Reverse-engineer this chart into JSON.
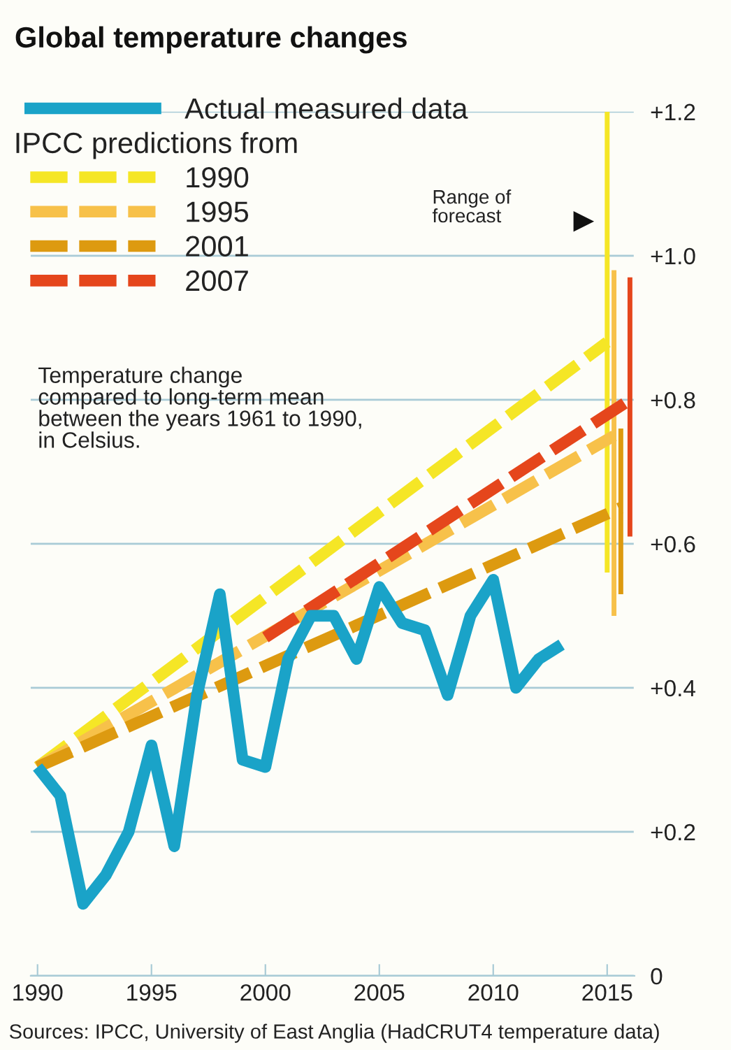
{
  "chart_data": {
    "type": "line",
    "title": "Global temperature changes",
    "legend_title": "IPCC predictions from",
    "xlim": [
      1989.7,
      2016.2
    ],
    "xticks": [
      1990,
      1995,
      2000,
      2005,
      2010,
      2015
    ],
    "ylim": [
      0,
      1.2
    ],
    "yticks": [
      {
        "value": 0,
        "label": "0"
      },
      {
        "value": 0.2,
        "label": "+0.2"
      },
      {
        "value": 0.4,
        "label": "+0.4"
      },
      {
        "value": 0.6,
        "label": "+0.6"
      },
      {
        "value": 0.8,
        "label": "+0.8"
      },
      {
        "value": 1.0,
        "label": "+1.0"
      },
      {
        "value": 1.2,
        "label": "+1.2"
      }
    ],
    "grid": "y",
    "legend": "top left",
    "marker": "none",
    "series": [
      {
        "name": "Actual measured data",
        "color": "#1aa3c8",
        "line_style": "solid",
        "x": [
          1990,
          1991,
          1992,
          1993,
          1994,
          1995,
          1996,
          1997,
          1998,
          1999,
          2000,
          2001,
          2002,
          2003,
          2004,
          2005,
          2006,
          2007,
          2008,
          2009,
          2010,
          2011,
          2012,
          2013
        ],
        "values": [
          0.29,
          0.25,
          0.1,
          0.14,
          0.2,
          0.32,
          0.18,
          0.39,
          0.53,
          0.3,
          0.29,
          0.44,
          0.5,
          0.5,
          0.44,
          0.54,
          0.49,
          0.48,
          0.39,
          0.5,
          0.55,
          0.4,
          0.44,
          0.46
        ]
      },
      {
        "name": "1990",
        "color": "#f5e626",
        "line_style": "dashed",
        "x": [
          1990,
          2015
        ],
        "values": [
          0.29,
          0.88
        ],
        "errors": [
          null,
          [
            0.56,
            1.2
          ]
        ]
      },
      {
        "name": "1995",
        "color": "#f7c14a",
        "line_style": "dashed",
        "x": [
          1990,
          2015.3
        ],
        "values": [
          0.29,
          0.75
        ],
        "errors": [
          null,
          [
            0.5,
            0.98
          ]
        ]
      },
      {
        "name": "2001",
        "color": "#dd9a10",
        "line_style": "dashed",
        "x": [
          1990,
          2015.6
        ],
        "values": [
          0.29,
          0.65
        ],
        "errors": [
          null,
          [
            0.53,
            0.76
          ]
        ]
      },
      {
        "name": "2007",
        "color": "#e5461c",
        "line_style": "dashed",
        "x": [
          2000,
          2016
        ],
        "values": [
          0.47,
          0.8
        ],
        "errors": [
          null,
          [
            0.61,
            0.97
          ]
        ]
      }
    ],
    "annotations": [
      "Temperature change\ncompared to long-term mean\nbetween the years 1961 to 1990,\nin Celsius.",
      "Range of\nforecast",
      "Sources: IPCC, University of East Anglia (HadCRUT4 temperature data)"
    ]
  }
}
